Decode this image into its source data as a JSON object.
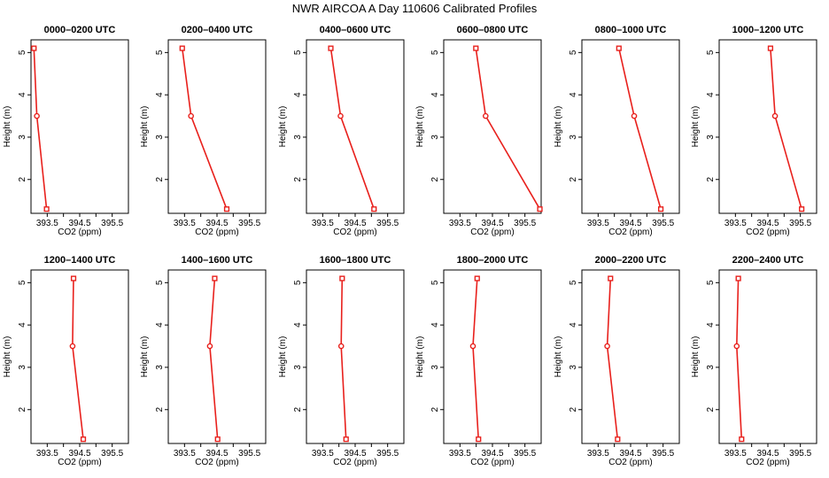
{
  "figure_title": "NWR AIRCOA A  Day 110606  Calibrated Profiles",
  "colors": {
    "series": "#e8201c",
    "frame": "#000000",
    "background": "#ffffff"
  },
  "chart_data": [
    {
      "type": "line",
      "title": "0000–0200 UTC",
      "xlabel": "CO2 (ppm)",
      "ylabel": "Height (m)",
      "xlim": [
        393.0,
        396.0
      ],
      "ylim": [
        1.2,
        5.3
      ],
      "xticks": [
        393.5,
        394.0,
        394.5,
        395.0,
        395.5
      ],
      "xtick_labels": [
        "393.5",
        "",
        "394.5",
        "",
        "395.5"
      ],
      "yticks": [
        2,
        3,
        4,
        5
      ],
      "ytick_labels": [
        "2",
        "3",
        "4",
        "5"
      ],
      "points": [
        {
          "x": 393.09,
          "y": 5.1
        },
        {
          "x": 393.18,
          "y": 3.5
        },
        {
          "x": 393.48,
          "y": 1.3
        }
      ]
    },
    {
      "type": "line",
      "title": "0200–0400 UTC",
      "xlabel": "CO2 (ppm)",
      "ylabel": "Height (m)",
      "xlim": [
        393.0,
        396.0
      ],
      "ylim": [
        1.2,
        5.3
      ],
      "xticks": [
        393.5,
        394.0,
        394.5,
        395.0,
        395.5
      ],
      "xtick_labels": [
        "393.5",
        "",
        "394.5",
        "",
        "395.5"
      ],
      "yticks": [
        2,
        3,
        4,
        5
      ],
      "ytick_labels": [
        "2",
        "3",
        "4",
        "5"
      ],
      "points": [
        {
          "x": 393.43,
          "y": 5.1
        },
        {
          "x": 393.7,
          "y": 3.5
        },
        {
          "x": 394.8,
          "y": 1.3
        }
      ]
    },
    {
      "type": "line",
      "title": "0400–0600 UTC",
      "xlabel": "CO2 (ppm)",
      "ylabel": "Height (m)",
      "xlim": [
        393.0,
        396.0
      ],
      "ylim": [
        1.2,
        5.3
      ],
      "xticks": [
        393.5,
        394.0,
        394.5,
        395.0,
        395.5
      ],
      "xtick_labels": [
        "393.5",
        "",
        "394.5",
        "",
        "395.5"
      ],
      "yticks": [
        2,
        3,
        4,
        5
      ],
      "ytick_labels": [
        "2",
        "3",
        "4",
        "5"
      ],
      "points": [
        {
          "x": 393.75,
          "y": 5.1
        },
        {
          "x": 394.05,
          "y": 3.5
        },
        {
          "x": 395.08,
          "y": 1.3
        }
      ]
    },
    {
      "type": "line",
      "title": "0600–0800 UTC",
      "xlabel": "CO2 (ppm)",
      "ylabel": "Height (m)",
      "xlim": [
        393.0,
        396.0
      ],
      "ylim": [
        1.2,
        5.3
      ],
      "xticks": [
        393.5,
        394.0,
        394.5,
        395.0,
        395.5
      ],
      "xtick_labels": [
        "393.5",
        "",
        "394.5",
        "",
        "395.5"
      ],
      "yticks": [
        2,
        3,
        4,
        5
      ],
      "ytick_labels": [
        "2",
        "3",
        "4",
        "5"
      ],
      "points": [
        {
          "x": 393.99,
          "y": 5.1
        },
        {
          "x": 394.29,
          "y": 3.5
        },
        {
          "x": 395.96,
          "y": 1.3
        }
      ]
    },
    {
      "type": "line",
      "title": "0800–1000 UTC",
      "xlabel": "CO2 (ppm)",
      "ylabel": "Height (m)",
      "xlim": [
        393.0,
        396.0
      ],
      "ylim": [
        1.2,
        5.3
      ],
      "xticks": [
        393.5,
        394.0,
        394.5,
        395.0,
        395.5
      ],
      "xtick_labels": [
        "393.5",
        "",
        "394.5",
        "",
        "395.5"
      ],
      "yticks": [
        2,
        3,
        4,
        5
      ],
      "ytick_labels": [
        "2",
        "3",
        "4",
        "5"
      ],
      "points": [
        {
          "x": 394.14,
          "y": 5.1
        },
        {
          "x": 394.61,
          "y": 3.5
        },
        {
          "x": 395.43,
          "y": 1.3
        }
      ]
    },
    {
      "type": "line",
      "title": "1000–1200 UTC",
      "xlabel": "CO2 (ppm)",
      "ylabel": "Height (m)",
      "xlim": [
        393.0,
        396.0
      ],
      "ylim": [
        1.2,
        5.3
      ],
      "xticks": [
        393.5,
        394.0,
        394.5,
        395.0,
        395.5
      ],
      "xtick_labels": [
        "393.5",
        "",
        "394.5",
        "",
        "395.5"
      ],
      "yticks": [
        2,
        3,
        4,
        5
      ],
      "ytick_labels": [
        "2",
        "3",
        "4",
        "5"
      ],
      "points": [
        {
          "x": 394.58,
          "y": 5.1
        },
        {
          "x": 394.72,
          "y": 3.5
        },
        {
          "x": 395.54,
          "y": 1.3
        }
      ]
    },
    {
      "type": "line",
      "title": "1200–1400 UTC",
      "xlabel": "CO2 (ppm)",
      "ylabel": "Height (m)",
      "xlim": [
        393.0,
        396.0
      ],
      "ylim": [
        1.2,
        5.3
      ],
      "xticks": [
        393.5,
        394.0,
        394.5,
        395.0,
        395.5
      ],
      "xtick_labels": [
        "393.5",
        "",
        "394.5",
        "",
        "395.5"
      ],
      "yticks": [
        2,
        3,
        4,
        5
      ],
      "ytick_labels": [
        "2",
        "3",
        "4",
        "5"
      ],
      "points": [
        {
          "x": 394.31,
          "y": 5.1
        },
        {
          "x": 394.28,
          "y": 3.5
        },
        {
          "x": 394.61,
          "y": 1.3
        }
      ]
    },
    {
      "type": "line",
      "title": "1400–1600 UTC",
      "xlabel": "CO2 (ppm)",
      "ylabel": "Height (m)",
      "xlim": [
        393.0,
        396.0
      ],
      "ylim": [
        1.2,
        5.3
      ],
      "xticks": [
        393.5,
        394.0,
        394.5,
        395.0,
        395.5
      ],
      "xtick_labels": [
        "393.5",
        "",
        "394.5",
        "",
        "395.5"
      ],
      "yticks": [
        2,
        3,
        4,
        5
      ],
      "ytick_labels": [
        "2",
        "3",
        "4",
        "5"
      ],
      "points": [
        {
          "x": 394.43,
          "y": 5.1
        },
        {
          "x": 394.28,
          "y": 3.5
        },
        {
          "x": 394.52,
          "y": 1.3
        }
      ]
    },
    {
      "type": "line",
      "title": "1600–1800 UTC",
      "xlabel": "CO2 (ppm)",
      "ylabel": "Height (m)",
      "xlim": [
        393.0,
        396.0
      ],
      "ylim": [
        1.2,
        5.3
      ],
      "xticks": [
        393.5,
        394.0,
        394.5,
        395.0,
        395.5
      ],
      "xtick_labels": [
        "393.5",
        "",
        "394.5",
        "",
        "395.5"
      ],
      "yticks": [
        2,
        3,
        4,
        5
      ],
      "ytick_labels": [
        "2",
        "3",
        "4",
        "5"
      ],
      "points": [
        {
          "x": 394.1,
          "y": 5.1
        },
        {
          "x": 394.07,
          "y": 3.5
        },
        {
          "x": 394.22,
          "y": 1.3
        }
      ]
    },
    {
      "type": "line",
      "title": "1800–2000 UTC",
      "xlabel": "CO2 (ppm)",
      "ylabel": "Height (m)",
      "xlim": [
        393.0,
        396.0
      ],
      "ylim": [
        1.2,
        5.3
      ],
      "xticks": [
        393.5,
        394.0,
        394.5,
        395.0,
        395.5
      ],
      "xtick_labels": [
        "393.5",
        "",
        "394.5",
        "",
        "395.5"
      ],
      "yticks": [
        2,
        3,
        4,
        5
      ],
      "ytick_labels": [
        "2",
        "3",
        "4",
        "5"
      ],
      "points": [
        {
          "x": 394.03,
          "y": 5.1
        },
        {
          "x": 393.9,
          "y": 3.5
        },
        {
          "x": 394.07,
          "y": 1.3
        }
      ]
    },
    {
      "type": "line",
      "title": "2000–2200 UTC",
      "xlabel": "CO2 (ppm)",
      "ylabel": "Height (m)",
      "xlim": [
        393.0,
        396.0
      ],
      "ylim": [
        1.2,
        5.3
      ],
      "xticks": [
        393.5,
        394.0,
        394.5,
        395.0,
        395.5
      ],
      "xtick_labels": [
        "393.5",
        "",
        "394.5",
        "",
        "395.5"
      ],
      "yticks": [
        2,
        3,
        4,
        5
      ],
      "ytick_labels": [
        "2",
        "3",
        "4",
        "5"
      ],
      "points": [
        {
          "x": 393.88,
          "y": 5.1
        },
        {
          "x": 393.78,
          "y": 3.5
        },
        {
          "x": 394.1,
          "y": 1.3
        }
      ]
    },
    {
      "type": "line",
      "title": "2200–2400 UTC",
      "xlabel": "CO2 (ppm)",
      "ylabel": "Height (m)",
      "xlim": [
        393.0,
        396.0
      ],
      "ylim": [
        1.2,
        5.3
      ],
      "xticks": [
        393.5,
        394.0,
        394.5,
        395.0,
        395.5
      ],
      "xtick_labels": [
        "393.5",
        "",
        "394.5",
        "",
        "395.5"
      ],
      "yticks": [
        2,
        3,
        4,
        5
      ],
      "ytick_labels": [
        "2",
        "3",
        "4",
        "5"
      ],
      "points": [
        {
          "x": 393.59,
          "y": 5.1
        },
        {
          "x": 393.54,
          "y": 3.5
        },
        {
          "x": 393.69,
          "y": 1.3
        }
      ]
    }
  ]
}
